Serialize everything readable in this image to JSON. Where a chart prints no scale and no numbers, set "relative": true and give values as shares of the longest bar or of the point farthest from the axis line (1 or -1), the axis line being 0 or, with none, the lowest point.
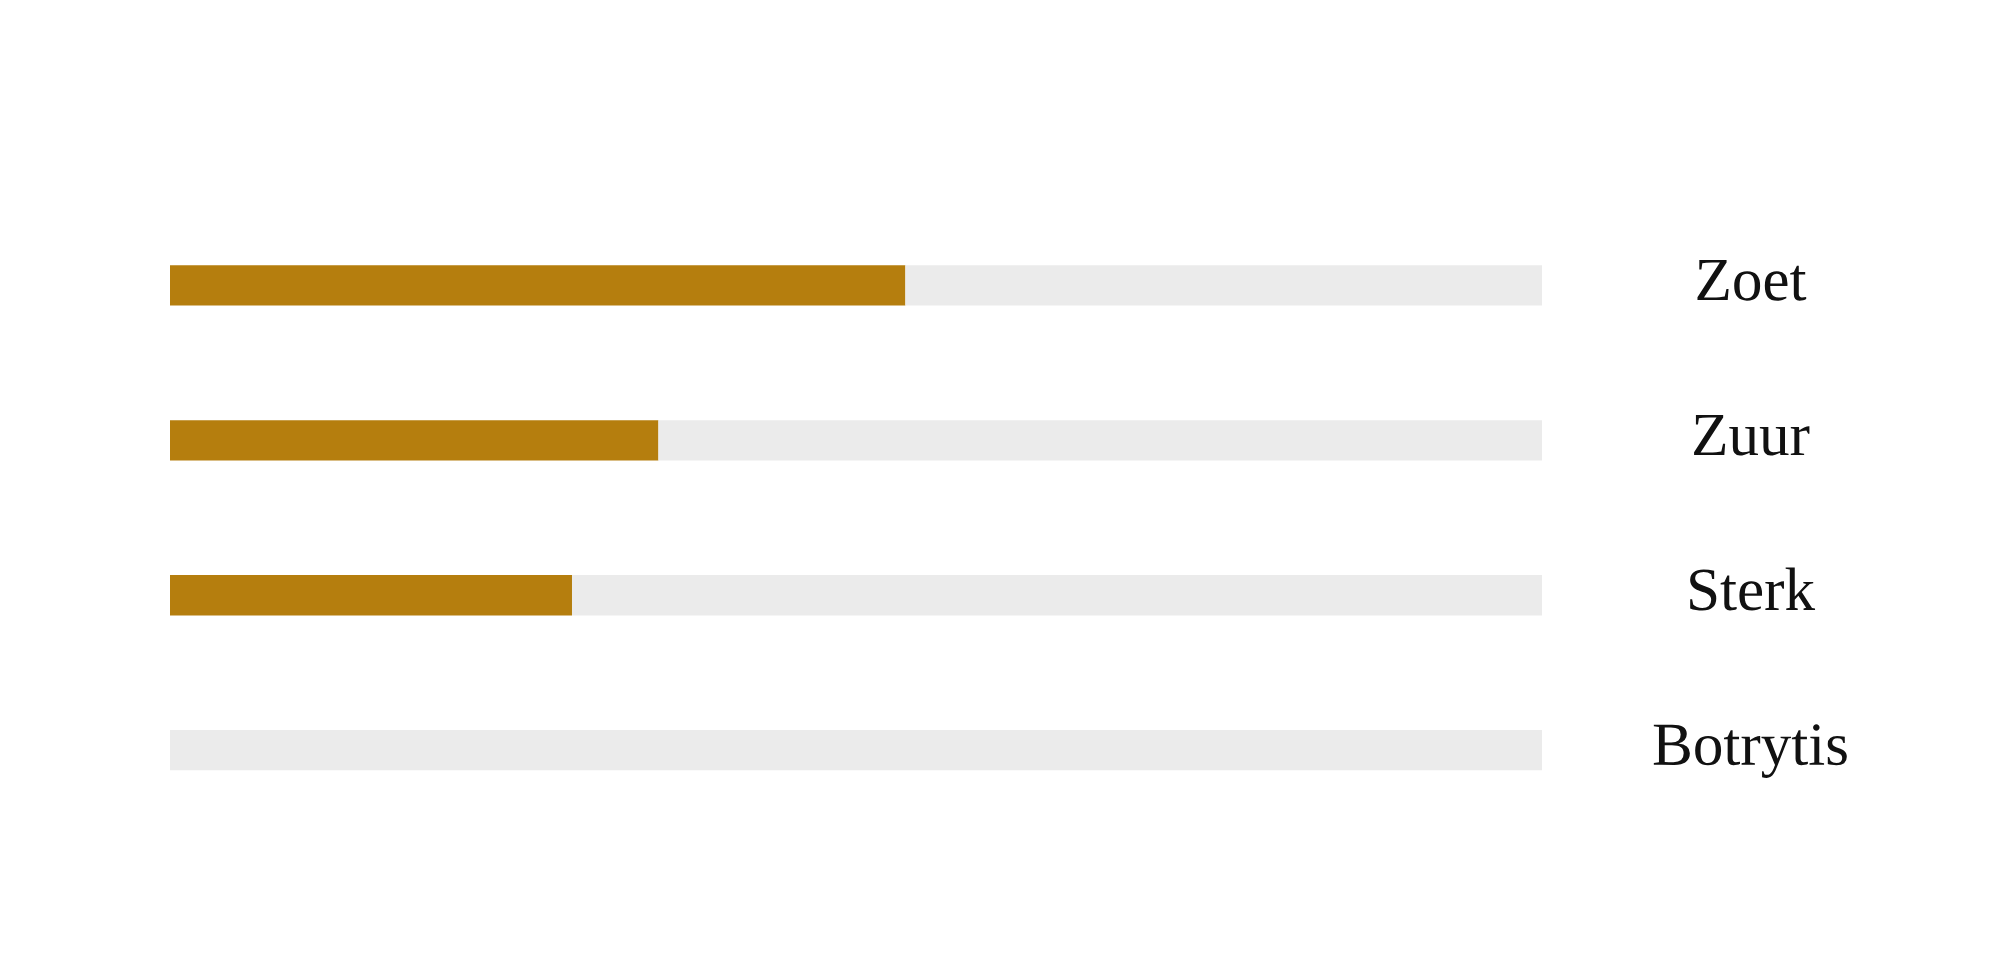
{
  "chart_data": {
    "type": "bar",
    "orientation": "horizontal",
    "stacked": true,
    "relative": true,
    "categories": [
      "Zoet",
      "Zuur",
      "Sterk",
      "Botrytis"
    ],
    "series": [
      {
        "color": "#b57e0e",
        "values": [
          0.536,
          0.356,
          0.293,
          0
        ]
      },
      {
        "color": "#ebebeb",
        "values": [
          0.464,
          0.644,
          0.707,
          1
        ]
      }
    ],
    "legend": false,
    "tick_labels": "y"
  }
}
